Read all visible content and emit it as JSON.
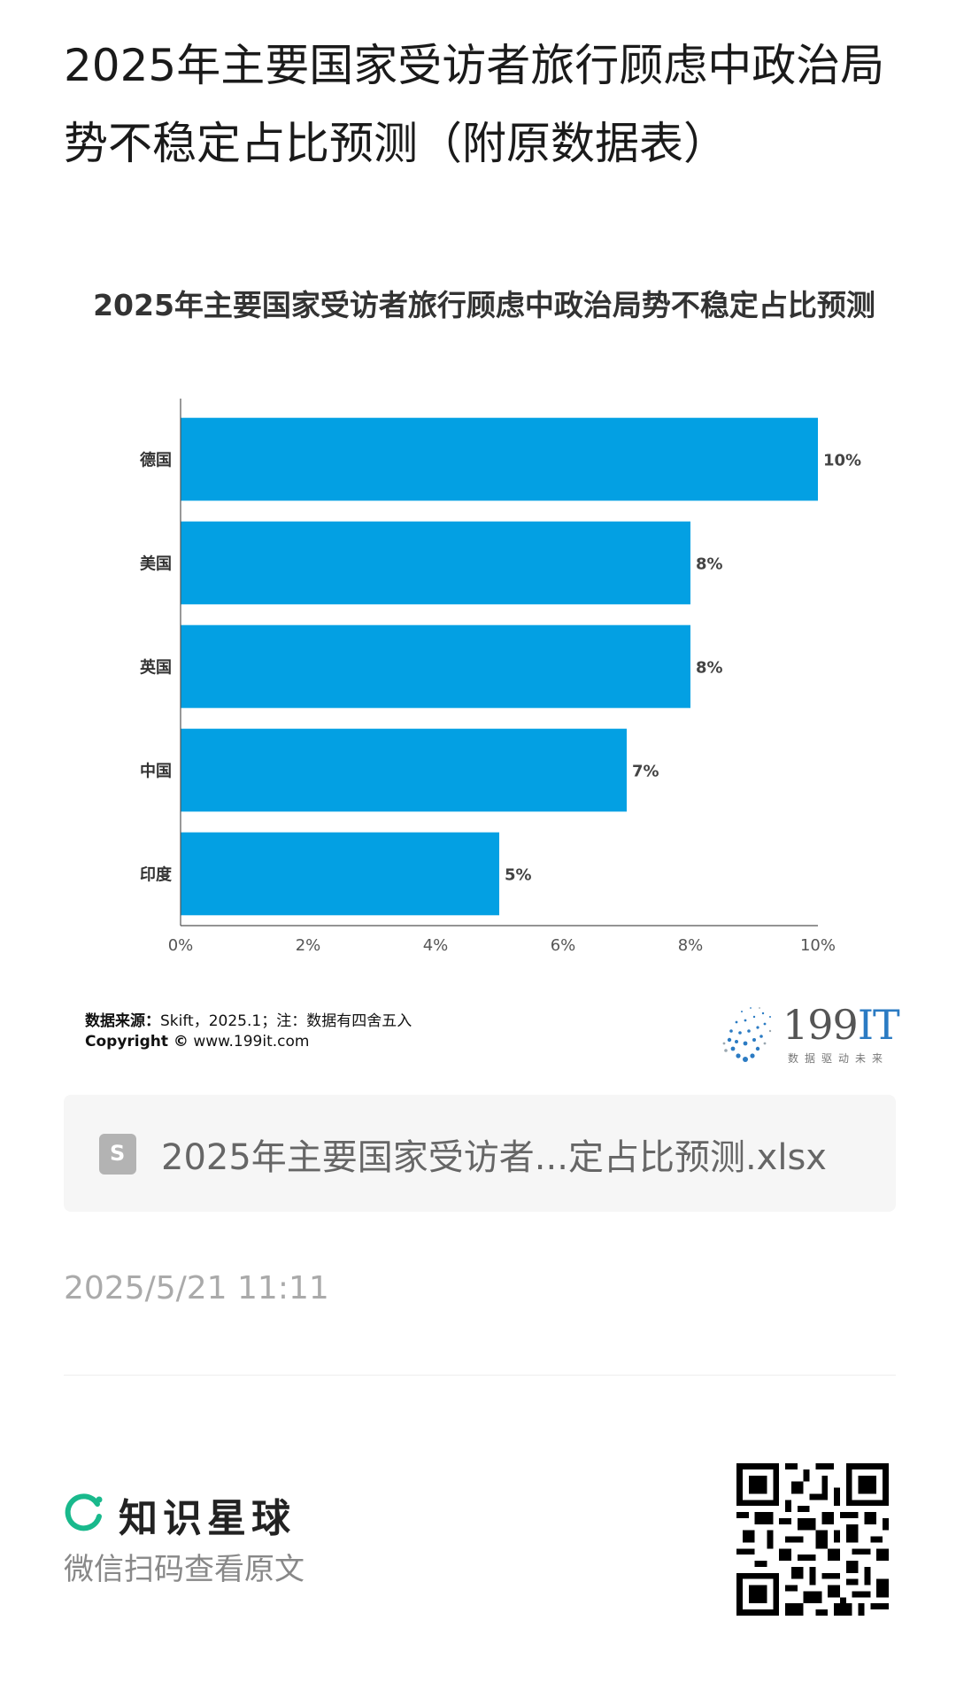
{
  "post": {
    "title": "2025年主要国家受访者旅行顾虑中政治局势不稳定占比预测（附原数据表）",
    "date": "2025/5/21 11:11"
  },
  "chart": {
    "source_label": "数据来源：",
    "source_text": "Skift，2025.1；注：数据有四舍五入",
    "copyright_label": "Copyright ©",
    "copyright_text": "www.199it.com",
    "logo_number": "199",
    "logo_it": "IT",
    "logo_slogan": "数据驱动未来"
  },
  "chart_data": {
    "type": "bar",
    "orientation": "horizontal",
    "title": "2025年主要国家受访者旅行顾虑中政治局势不稳定占比预测",
    "categories": [
      "德国",
      "美国",
      "英国",
      "中国",
      "印度"
    ],
    "values": [
      10,
      8,
      8,
      7,
      5
    ],
    "value_labels": [
      "10%",
      "8%",
      "8%",
      "7%",
      "5%"
    ],
    "xlim": [
      0,
      10
    ],
    "xticks": [
      "0%",
      "2%",
      "4%",
      "6%",
      "8%",
      "10%"
    ],
    "xlabel": "",
    "ylabel": "",
    "grid": false,
    "bar_color": "#03A0E3"
  },
  "file": {
    "icon": "spreadsheet-file-icon",
    "icon_glyph": "S",
    "name": "2025年主要国家受访者...定占比预测.xlsx"
  },
  "footer": {
    "brand_icon": "zsxq-logo-icon",
    "brand_name": "知识星球",
    "hint": "微信扫码查看原文",
    "qr_icon": "qr-code-icon"
  },
  "colors": {
    "accent_green": "#19B98C",
    "bar_blue": "#03A0E3",
    "brand_blue": "#2B7BC3"
  }
}
